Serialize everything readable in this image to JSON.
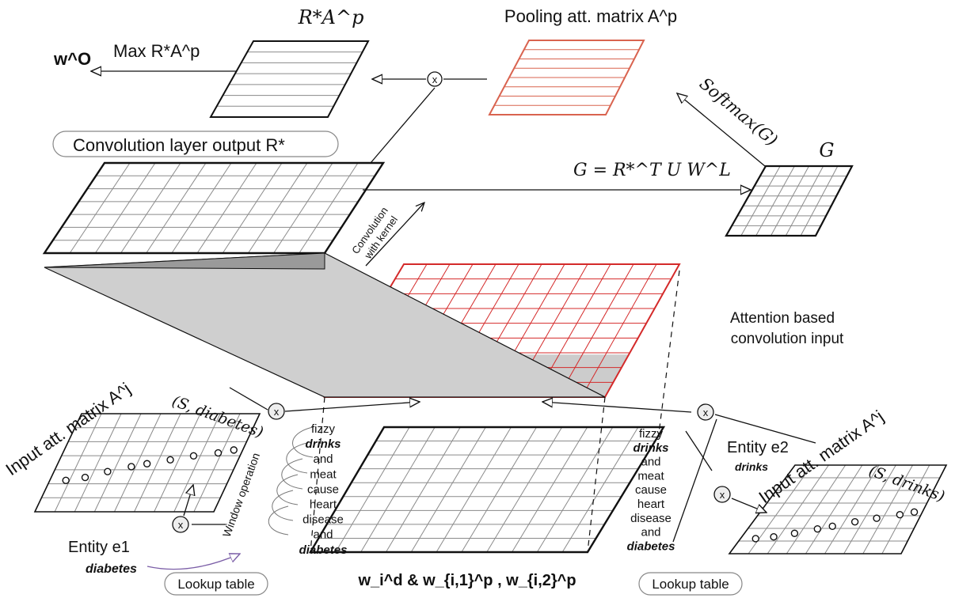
{
  "labels": {
    "rstar_ap_title": "R*A^p",
    "pooling_title": "Pooling att. matrix A^p",
    "max_label": "Max R*A^p",
    "wo": "w^O",
    "softmax": "Softmax(G)",
    "g_title": "G",
    "g_equation": "G = R*^T U W^L",
    "conv_output": "Convolution layer output R*",
    "conv_kernel_line1": "Convolution",
    "conv_kernel_line2": "with kernel",
    "attention_line1": "Attention based",
    "attention_line2": "convolution input",
    "input_att_left": "Input att. matrix A^j",
    "input_att_right": "Input att. matrix A^j",
    "s_diabetes": "(S, diabetes)",
    "s_drinks": "(S, drinks)",
    "window_operation": "Window operation",
    "entity_e1": "Entity e1",
    "entity_e1_word": "diabetes",
    "entity_e2": "Entity e2",
    "entity_e2_word": "drinks",
    "lookup_left": "Lookup table",
    "lookup_right": "Lookup table",
    "embeddings": "w_i^d  &  w_{i,1}^p , w_{i,2}^p",
    "multiply_symbol": "x"
  },
  "sentence_left": [
    "fizzy",
    "drinks",
    "and",
    "meat",
    "cause",
    "heart",
    "disease",
    "and",
    "diabetes"
  ],
  "sentence_right": [
    "fizzy",
    "drinks",
    "and",
    "meat",
    "cause",
    "heart",
    "disease",
    "and",
    "diabetes"
  ],
  "bold_words": [
    "drinks",
    "diabetes"
  ],
  "colors": {
    "black": "#111111",
    "grid_gray": "#8a8a8a",
    "red": "#d42a2a",
    "pool_red": "#d9634f",
    "band_gray": "#c9c9c9",
    "arrow_purple": "#7b5ea7"
  }
}
